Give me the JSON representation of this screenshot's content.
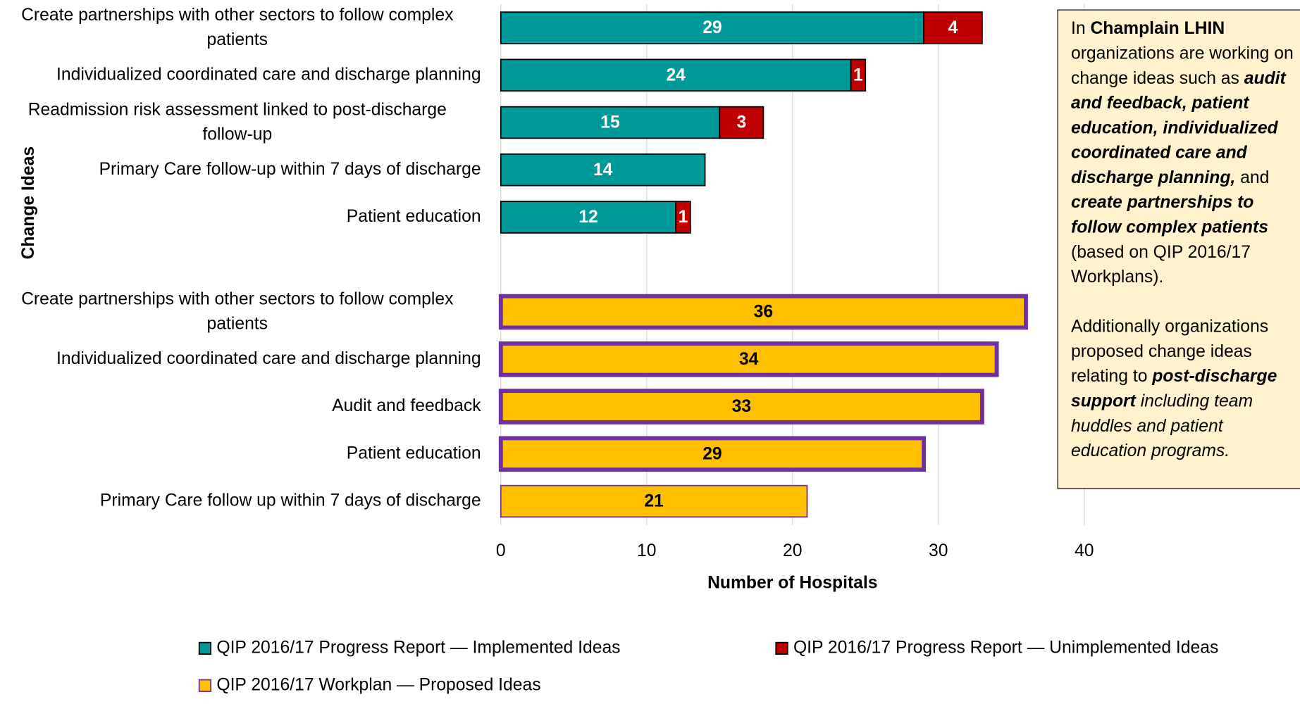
{
  "chart_data": {
    "type": "stacked_barh",
    "xlabel": "Number of Hospitals",
    "ylabel": "Change Ideas",
    "categories": [
      "Create partnerships with other sectors to follow complex patients",
      "Individualized coordinated care and discharge planning",
      "Readmission risk assessment linked to post-discharge follow-up",
      "Primary Care follow-up within 7 days of discharge",
      "Patient education",
      null,
      "Create partnerships with other sectors to follow complex patients",
      "Individualized coordinated care and discharge planning",
      "Audit and feedback",
      "Patient education",
      "Primary Care follow up within 7 days of discharge"
    ],
    "series": [
      {
        "name": "QIP 2016/17 Progress Report — Implemented Ideas",
        "color": "#009999",
        "label_color": "#ffffff",
        "edgecolor": "#000000",
        "values": [
          29,
          24,
          15,
          14,
          12,
          null,
          null,
          null,
          null,
          null,
          null
        ]
      },
      {
        "name": "QIP 2016/17 Progress Report — Unimplemented Ideas",
        "color": "#c00000",
        "label_color": "#ffffff",
        "edgecolor": "#000000",
        "values": [
          4,
          1,
          3,
          null,
          1,
          null,
          null,
          null,
          null,
          null,
          null
        ]
      },
      {
        "name": "QIP 2016/17 Workplan — Proposed Ideas",
        "color": "#ffc000",
        "label_color": "#000000",
        "edgecolor": "#7030a0",
        "edge_widths": [
          null,
          null,
          null,
          null,
          null,
          null,
          5,
          5,
          5,
          5,
          1.5
        ],
        "values": [
          null,
          null,
          null,
          null,
          null,
          null,
          36,
          34,
          33,
          29,
          21
        ]
      }
    ],
    "xlim": [
      0,
      40
    ],
    "xticks": [
      0,
      10,
      20,
      30,
      40
    ],
    "grid": true
  },
  "note": {
    "paragraphs": [
      [
        {
          "text": "In "
        },
        {
          "text": "Champlain LHIN",
          "bold": true
        },
        {
          "text": " organizations are working on change ideas such as "
        },
        {
          "text": "audit and feedback, patient education, individualized coordinated care and discharge planning,",
          "bold": true,
          "italic": true
        },
        {
          "text": " and "
        },
        {
          "text": "create partnerships to follow complex patients",
          "bold": true,
          "italic": true
        },
        {
          "text": " (based on QIP 2016/17 Workplans)."
        }
      ],
      [
        {
          "text": "Additionally organizations proposed change ideas relating to "
        },
        {
          "text": "post-discharge support",
          "bold": true,
          "italic": true
        },
        {
          "text": " including team huddles and patient education programs.",
          "italic": true
        }
      ]
    ]
  }
}
